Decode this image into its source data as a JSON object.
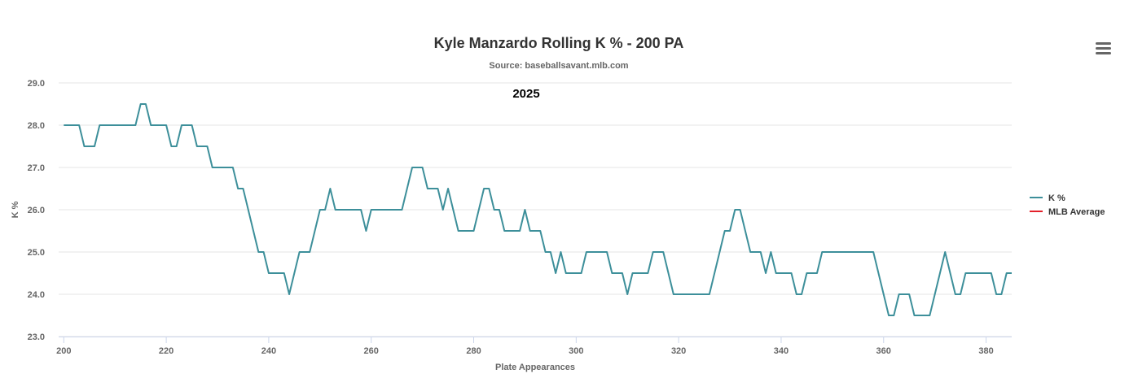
{
  "chart_data": {
    "type": "line",
    "title": "Kyle Manzardo Rolling K % - 200 PA",
    "subtitle": "Source: baseballsavant.mlb.com",
    "annotation": "2025",
    "xlabel": "Plate Appearances",
    "ylabel": "K %",
    "xlim": [
      199,
      385
    ],
    "ylim": [
      23.0,
      29.0
    ],
    "x_ticks": [
      200,
      220,
      240,
      260,
      280,
      300,
      320,
      340,
      360,
      380
    ],
    "y_ticks": [
      23.0,
      24.0,
      25.0,
      26.0,
      27.0,
      28.0,
      29.0
    ],
    "grid": true,
    "legend_position": "right",
    "series": [
      {
        "name": "K %",
        "color": "#3d8f9a",
        "points": [
          [
            200,
            28.0
          ],
          [
            201,
            28.0
          ],
          [
            202,
            28.0
          ],
          [
            203,
            28.0
          ],
          [
            204,
            27.5
          ],
          [
            205,
            27.5
          ],
          [
            206,
            27.5
          ],
          [
            207,
            28.0
          ],
          [
            208,
            28.0
          ],
          [
            209,
            28.0
          ],
          [
            210,
            28.0
          ],
          [
            211,
            28.0
          ],
          [
            212,
            28.0
          ],
          [
            213,
            28.0
          ],
          [
            214,
            28.0
          ],
          [
            215,
            28.5
          ],
          [
            216,
            28.5
          ],
          [
            217,
            28.0
          ],
          [
            218,
            28.0
          ],
          [
            219,
            28.0
          ],
          [
            220,
            28.0
          ],
          [
            221,
            27.5
          ],
          [
            222,
            27.5
          ],
          [
            223,
            28.0
          ],
          [
            224,
            28.0
          ],
          [
            225,
            28.0
          ],
          [
            226,
            27.5
          ],
          [
            227,
            27.5
          ],
          [
            228,
            27.5
          ],
          [
            229,
            27.0
          ],
          [
            230,
            27.0
          ],
          [
            231,
            27.0
          ],
          [
            232,
            27.0
          ],
          [
            233,
            27.0
          ],
          [
            234,
            26.5
          ],
          [
            235,
            26.5
          ],
          [
            236,
            26.0
          ],
          [
            237,
            25.5
          ],
          [
            238,
            25.0
          ],
          [
            239,
            25.0
          ],
          [
            240,
            24.5
          ],
          [
            241,
            24.5
          ],
          [
            242,
            24.5
          ],
          [
            243,
            24.5
          ],
          [
            244,
            24.0
          ],
          [
            245,
            24.5
          ],
          [
            246,
            25.0
          ],
          [
            247,
            25.0
          ],
          [
            248,
            25.0
          ],
          [
            249,
            25.5
          ],
          [
            250,
            26.0
          ],
          [
            251,
            26.0
          ],
          [
            252,
            26.5
          ],
          [
            253,
            26.0
          ],
          [
            254,
            26.0
          ],
          [
            255,
            26.0
          ],
          [
            256,
            26.0
          ],
          [
            257,
            26.0
          ],
          [
            258,
            26.0
          ],
          [
            259,
            25.5
          ],
          [
            260,
            26.0
          ],
          [
            261,
            26.0
          ],
          [
            262,
            26.0
          ],
          [
            263,
            26.0
          ],
          [
            264,
            26.0
          ],
          [
            265,
            26.0
          ],
          [
            266,
            26.0
          ],
          [
            267,
            26.5
          ],
          [
            268,
            27.0
          ],
          [
            269,
            27.0
          ],
          [
            270,
            27.0
          ],
          [
            271,
            26.5
          ],
          [
            272,
            26.5
          ],
          [
            273,
            26.5
          ],
          [
            274,
            26.0
          ],
          [
            275,
            26.5
          ],
          [
            276,
            26.0
          ],
          [
            277,
            25.5
          ],
          [
            278,
            25.5
          ],
          [
            279,
            25.5
          ],
          [
            280,
            25.5
          ],
          [
            281,
            26.0
          ],
          [
            282,
            26.5
          ],
          [
            283,
            26.5
          ],
          [
            284,
            26.0
          ],
          [
            285,
            26.0
          ],
          [
            286,
            25.5
          ],
          [
            287,
            25.5
          ],
          [
            288,
            25.5
          ],
          [
            289,
            25.5
          ],
          [
            290,
            26.0
          ],
          [
            291,
            25.5
          ],
          [
            292,
            25.5
          ],
          [
            293,
            25.5
          ],
          [
            294,
            25.0
          ],
          [
            295,
            25.0
          ],
          [
            296,
            24.5
          ],
          [
            297,
            25.0
          ],
          [
            298,
            24.5
          ],
          [
            299,
            24.5
          ],
          [
            300,
            24.5
          ],
          [
            301,
            24.5
          ],
          [
            302,
            25.0
          ],
          [
            303,
            25.0
          ],
          [
            304,
            25.0
          ],
          [
            305,
            25.0
          ],
          [
            306,
            25.0
          ],
          [
            307,
            24.5
          ],
          [
            308,
            24.5
          ],
          [
            309,
            24.5
          ],
          [
            310,
            24.0
          ],
          [
            311,
            24.5
          ],
          [
            312,
            24.5
          ],
          [
            313,
            24.5
          ],
          [
            314,
            24.5
          ],
          [
            315,
            25.0
          ],
          [
            316,
            25.0
          ],
          [
            317,
            25.0
          ],
          [
            318,
            24.5
          ],
          [
            319,
            24.0
          ],
          [
            320,
            24.0
          ],
          [
            321,
            24.0
          ],
          [
            322,
            24.0
          ],
          [
            323,
            24.0
          ],
          [
            324,
            24.0
          ],
          [
            325,
            24.0
          ],
          [
            326,
            24.0
          ],
          [
            327,
            24.5
          ],
          [
            328,
            25.0
          ],
          [
            329,
            25.5
          ],
          [
            330,
            25.5
          ],
          [
            331,
            26.0
          ],
          [
            332,
            26.0
          ],
          [
            333,
            25.5
          ],
          [
            334,
            25.0
          ],
          [
            335,
            25.0
          ],
          [
            336,
            25.0
          ],
          [
            337,
            24.5
          ],
          [
            338,
            25.0
          ],
          [
            339,
            24.5
          ],
          [
            340,
            24.5
          ],
          [
            341,
            24.5
          ],
          [
            342,
            24.5
          ],
          [
            343,
            24.0
          ],
          [
            344,
            24.0
          ],
          [
            345,
            24.5
          ],
          [
            346,
            24.5
          ],
          [
            347,
            24.5
          ],
          [
            348,
            25.0
          ],
          [
            349,
            25.0
          ],
          [
            350,
            25.0
          ],
          [
            351,
            25.0
          ],
          [
            352,
            25.0
          ],
          [
            353,
            25.0
          ],
          [
            354,
            25.0
          ],
          [
            355,
            25.0
          ],
          [
            356,
            25.0
          ],
          [
            357,
            25.0
          ],
          [
            358,
            25.0
          ],
          [
            359,
            24.5
          ],
          [
            360,
            24.0
          ],
          [
            361,
            23.5
          ],
          [
            362,
            23.5
          ],
          [
            363,
            24.0
          ],
          [
            364,
            24.0
          ],
          [
            365,
            24.0
          ],
          [
            366,
            23.5
          ],
          [
            367,
            23.5
          ],
          [
            368,
            23.5
          ],
          [
            369,
            23.5
          ],
          [
            370,
            24.0
          ],
          [
            371,
            24.5
          ],
          [
            372,
            25.0
          ],
          [
            373,
            24.5
          ],
          [
            374,
            24.0
          ],
          [
            375,
            24.0
          ],
          [
            376,
            24.5
          ],
          [
            377,
            24.5
          ],
          [
            378,
            24.5
          ],
          [
            379,
            24.5
          ],
          [
            380,
            24.5
          ],
          [
            381,
            24.5
          ],
          [
            382,
            24.0
          ],
          [
            383,
            24.0
          ],
          [
            384,
            24.5
          ],
          [
            385,
            24.5
          ]
        ]
      },
      {
        "name": "MLB Average",
        "color": "#e3202a",
        "points": []
      }
    ]
  },
  "menu": {
    "icon": "hamburger-menu-icon"
  }
}
